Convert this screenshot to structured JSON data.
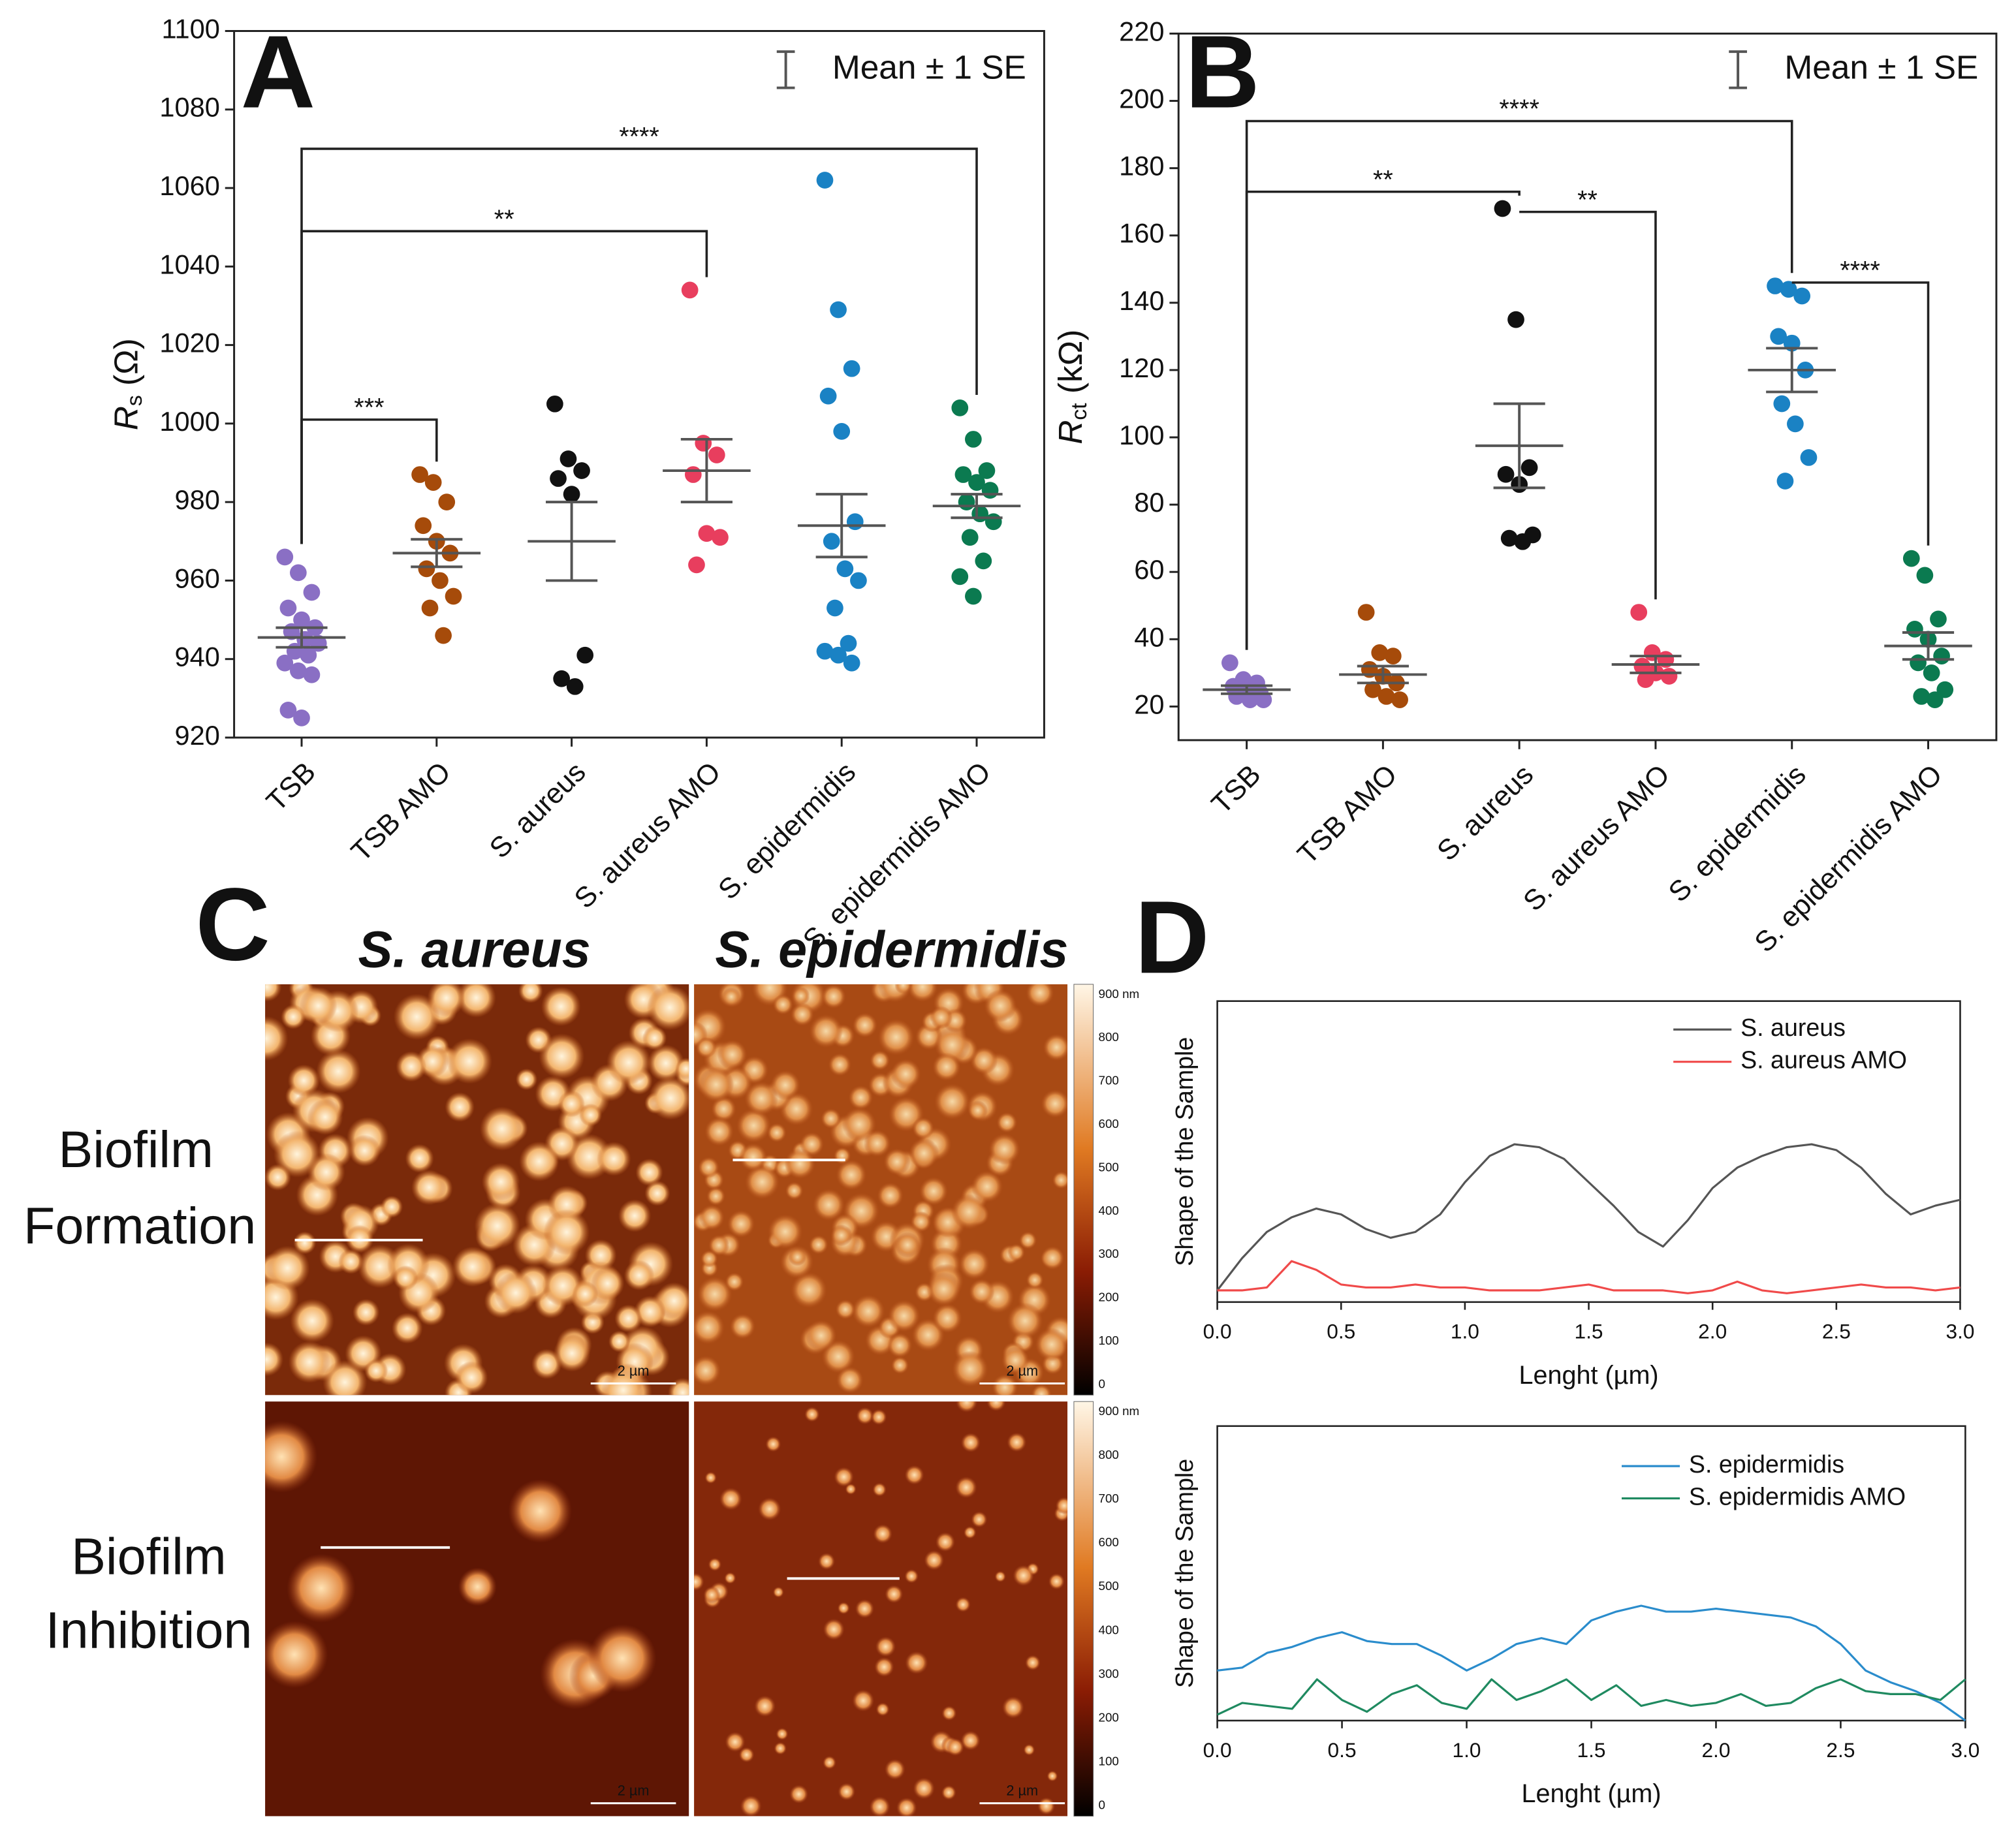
{
  "panels": [
    "A",
    "B",
    "C",
    "D"
  ],
  "chart_data": [
    {
      "type": "strip",
      "ylabel": [
        "R",
        "s",
        " (Ω)"
      ],
      "legend": "Mean ± 1 SE",
      "categories": [
        "TSB",
        "TSB AMO",
        "S. aureus",
        "S. aureus AMO",
        "S. epidermidis",
        "S. epidermidis AMO"
      ],
      "colors": [
        "#8a6fc4",
        "#a64b0a",
        "#111111",
        "#e83e5e",
        "#1a82c4",
        "#0b7a50"
      ],
      "values": [
        [
          966,
          962,
          957,
          953,
          950,
          948,
          947,
          945,
          944,
          942,
          941,
          939,
          937,
          936,
          927,
          925
        ],
        [
          987,
          985,
          980,
          974,
          970,
          967,
          963,
          960,
          956,
          953,
          946
        ],
        [
          1005,
          991,
          988,
          986,
          982,
          941,
          935,
          933
        ],
        [
          1034,
          995,
          992,
          987,
          972,
          971,
          964
        ],
        [
          1062,
          1029,
          1014,
          1007,
          998,
          975,
          970,
          963,
          960,
          953,
          944,
          942,
          941,
          939
        ],
        [
          1004,
          996,
          988,
          987,
          985,
          983,
          980,
          977,
          975,
          971,
          965,
          961,
          956
        ]
      ],
      "means": [
        945.5,
        967,
        970,
        988,
        974,
        979
      ],
      "se": [
        2.5,
        3.5,
        10,
        8,
        8,
        3
      ],
      "ylim": [
        920,
        1100
      ],
      "yticks": [
        920,
        940,
        960,
        980,
        1000,
        1020,
        1040,
        1060,
        1080,
        1100
      ],
      "annotations": [
        {
          "from": 0,
          "to": 1,
          "y": 1001,
          "label": "***"
        },
        {
          "from": 0,
          "to": 3,
          "y": 1049,
          "label": "**"
        },
        {
          "from": 0,
          "to": 5,
          "y": 1070,
          "label": "****"
        }
      ]
    },
    {
      "type": "strip",
      "ylabel": [
        "R",
        "ct",
        " (kΩ)"
      ],
      "legend": "Mean ± 1 SE",
      "categories": [
        "TSB",
        "TSB AMO",
        "S. aureus",
        "S. aureus AMO",
        "S. epidermidis",
        "S. epidermidis AMO"
      ],
      "colors": [
        "#8a6fc4",
        "#a64b0a",
        "#111111",
        "#e83e5e",
        "#1a82c4",
        "#0b7a50"
      ],
      "values": [
        [
          33,
          28,
          27,
          26,
          25,
          24,
          23,
          22,
          22
        ],
        [
          48,
          36,
          35,
          31,
          29,
          27,
          25,
          23,
          22
        ],
        [
          168,
          135,
          91,
          89,
          86,
          71,
          70,
          69
        ],
        [
          48,
          36,
          34,
          32,
          30,
          29,
          28
        ],
        [
          145,
          144,
          142,
          130,
          128,
          120,
          110,
          104,
          94,
          87
        ],
        [
          64,
          59,
          46,
          43,
          40,
          35,
          33,
          30,
          25,
          23,
          22
        ]
      ],
      "means": [
        25,
        29.5,
        97.5,
        32.5,
        120,
        38
      ],
      "se": [
        1.2,
        2.5,
        12.5,
        2.5,
        6.5,
        4
      ],
      "ylim": [
        10,
        220
      ],
      "yticks": [
        20,
        40,
        60,
        80,
        100,
        120,
        140,
        160,
        180,
        200,
        220
      ],
      "annotations": [
        {
          "from": 0,
          "to": 2,
          "y": 173,
          "label": "**"
        },
        {
          "from": 2,
          "to": 3,
          "y": 167,
          "label": "**"
        },
        {
          "from": 0,
          "to": 4,
          "y": 194,
          "label": "****"
        },
        {
          "from": 4,
          "to": 5,
          "y": 146,
          "label": "****"
        }
      ]
    },
    {
      "type": "line",
      "xlabel": "Lenght (µm)",
      "ylabel": "Shape of the Sample",
      "x": [
        0,
        0.1,
        0.2,
        0.3,
        0.4,
        0.5,
        0.6,
        0.7,
        0.8,
        0.9,
        1,
        1.1,
        1.2,
        1.3,
        1.4,
        1.5,
        1.6,
        1.7,
        1.8,
        1.9,
        2,
        2.1,
        2.2,
        2.3,
        2.4,
        2.5,
        2.6,
        2.7,
        2.8,
        2.9,
        3
      ],
      "series": [
        {
          "name": "S. aureus",
          "color": "#555555",
          "values": [
            0.01,
            0.12,
            0.21,
            0.26,
            0.29,
            0.27,
            0.22,
            0.19,
            0.21,
            0.27,
            0.38,
            0.47,
            0.51,
            0.5,
            0.46,
            0.38,
            0.3,
            0.21,
            0.16,
            0.25,
            0.36,
            0.43,
            0.47,
            0.5,
            0.51,
            0.49,
            0.43,
            0.34,
            0.27,
            0.3,
            0.32
          ]
        },
        {
          "name": "S. aureus AMO",
          "color": "#f04a4a",
          "values": [
            0.01,
            0.01,
            0.02,
            0.11,
            0.08,
            0.03,
            0.02,
            0.02,
            0.03,
            0.02,
            0.02,
            0.01,
            0.01,
            0.01,
            0.02,
            0.03,
            0.01,
            0.01,
            0.01,
            0,
            0.01,
            0.04,
            0.01,
            0,
            0.01,
            0.02,
            0.03,
            0.02,
            0.02,
            0.01,
            0.02
          ]
        }
      ],
      "xlim": [
        0,
        3
      ],
      "ylim": [
        -0.03,
        1
      ],
      "xticks": [
        {
          "value": 0,
          "label": "0.0"
        },
        0.5,
        {
          "value": 1,
          "label": "1.0"
        },
        1.5,
        {
          "value": 2,
          "label": "2.0"
        },
        2.5,
        {
          "value": 3,
          "label": "3.0"
        }
      ]
    },
    {
      "type": "line",
      "xlabel": "Lenght (µm)",
      "ylabel": "Shape of the Sample",
      "x": [
        0,
        0.1,
        0.2,
        0.3,
        0.4,
        0.5,
        0.6,
        0.7,
        0.8,
        0.9,
        1,
        1.1,
        1.2,
        1.3,
        1.4,
        1.5,
        1.6,
        1.7,
        1.8,
        1.9,
        2,
        2.1,
        2.2,
        2.3,
        2.4,
        2.5,
        2.6,
        2.7,
        2.8,
        2.9,
        3
      ],
      "series": [
        {
          "name": "S. epidermidis",
          "color": "#2a8ccc",
          "values": [
            0.17,
            0.18,
            0.23,
            0.25,
            0.28,
            0.3,
            0.27,
            0.26,
            0.26,
            0.22,
            0.17,
            0.21,
            0.26,
            0.28,
            0.26,
            0.34,
            0.37,
            0.39,
            0.37,
            0.37,
            0.38,
            0.37,
            0.36,
            0.35,
            0.32,
            0.26,
            0.17,
            0.13,
            0.1,
            0.06,
            0
          ]
        },
        {
          "name": "S. epidermidis AMO",
          "color": "#1f8a60",
          "values": [
            0.02,
            0.06,
            0.05,
            0.04,
            0.14,
            0.07,
            0.03,
            0.09,
            0.12,
            0.06,
            0.04,
            0.14,
            0.07,
            0.1,
            0.14,
            0.07,
            0.12,
            0.05,
            0.07,
            0.05,
            0.06,
            0.09,
            0.05,
            0.06,
            0.11,
            0.14,
            0.1,
            0.09,
            0.09,
            0.07,
            0.14
          ]
        }
      ],
      "xlim": [
        0,
        3
      ],
      "ylim": [
        0,
        1
      ],
      "xticks": [
        {
          "value": 0,
          "label": "0.0"
        },
        0.5,
        {
          "value": 1,
          "label": "1.0"
        },
        1.5,
        {
          "value": 2,
          "label": "2.0"
        },
        2.5,
        {
          "value": 3,
          "label": "3.0"
        }
      ]
    }
  ],
  "panel_c": {
    "columns": [
      "S. aureus",
      "S. epidermidis"
    ],
    "rows": [
      [
        "Biofilm",
        "Formation"
      ],
      [
        "Biofilm",
        "Inhibition"
      ]
    ],
    "scale_bar": "2 µm",
    "colorbar": [
      "900 nm",
      "800",
      "700",
      "600",
      "500",
      "400",
      "300",
      "200",
      "100",
      "0"
    ]
  }
}
